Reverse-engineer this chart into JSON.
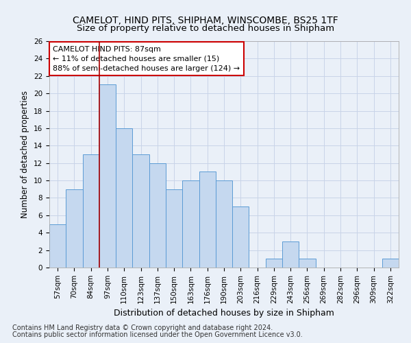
{
  "title": "CAMELOT, HIND PITS, SHIPHAM, WINSCOMBE, BS25 1TF",
  "subtitle": "Size of property relative to detached houses in Shipham",
  "xlabel": "Distribution of detached houses by size in Shipham",
  "ylabel": "Number of detached properties",
  "categories": [
    "57sqm",
    "70sqm",
    "84sqm",
    "97sqm",
    "110sqm",
    "123sqm",
    "137sqm",
    "150sqm",
    "163sqm",
    "176sqm",
    "190sqm",
    "203sqm",
    "216sqm",
    "229sqm",
    "243sqm",
    "256sqm",
    "269sqm",
    "282sqm",
    "296sqm",
    "309sqm",
    "322sqm"
  ],
  "values": [
    5,
    9,
    13,
    21,
    16,
    13,
    12,
    9,
    10,
    11,
    10,
    7,
    0,
    1,
    3,
    1,
    0,
    0,
    0,
    0,
    1
  ],
  "bar_color": "#c5d8ef",
  "bar_edge_color": "#5b9bd5",
  "grid_color": "#c8d4e8",
  "background_color": "#eaf0f8",
  "vertical_line_x": 2.5,
  "annotation_text": "CAMELOT HIND PITS: 87sqm\n← 11% of detached houses are smaller (15)\n88% of semi-detached houses are larger (124) →",
  "annotation_box_color": "#ffffff",
  "annotation_box_edge_color": "#cc0000",
  "ylim": [
    0,
    26
  ],
  "yticks": [
    0,
    2,
    4,
    6,
    8,
    10,
    12,
    14,
    16,
    18,
    20,
    22,
    24,
    26
  ],
  "footnote1": "Contains HM Land Registry data © Crown copyright and database right 2024.",
  "footnote2": "Contains public sector information licensed under the Open Government Licence v3.0.",
  "title_fontsize": 10,
  "xlabel_fontsize": 9,
  "ylabel_fontsize": 8.5,
  "tick_fontsize": 7.5,
  "annotation_fontsize": 8,
  "footnote_fontsize": 7
}
